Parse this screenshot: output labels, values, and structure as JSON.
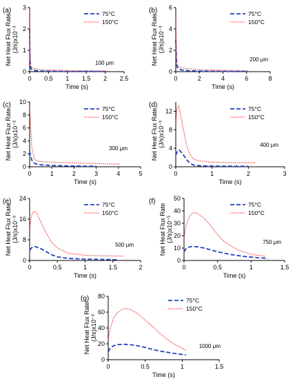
{
  "colors": {
    "s75": "#1f3fbf",
    "s150": "#e8261f",
    "axis": "#000000"
  },
  "chart_data": [
    {
      "type": "line",
      "panel": "(a)",
      "annotation": "100 μm",
      "xlabel": "Time (s)",
      "ylabel": [
        "Net Heat Flux Rate",
        "(J/s)x10⁻³"
      ],
      "xlim": [
        0,
        2.5
      ],
      "ylim": [
        0,
        3
      ],
      "xticks": [
        "0",
        "0.5",
        "1",
        "1.5",
        "2",
        "2.5"
      ],
      "yticks": [
        "0",
        "1",
        "2",
        "3"
      ],
      "series": [
        {
          "name": "75°C",
          "style": "dashed",
          "x": [
            0,
            0.01,
            0.02,
            0.04,
            0.1,
            0.3,
            0.6,
            1.0,
            1.5,
            2.0
          ],
          "y": [
            2.0,
            0.6,
            0.28,
            0.12,
            0.06,
            0.03,
            0.02,
            0.01,
            0.01,
            0.01
          ]
        },
        {
          "name": "150°C",
          "style": "dotted",
          "x": [
            0,
            0.01,
            0.02,
            0.04,
            0.1,
            0.3,
            0.6,
            1.0,
            1.5,
            2.05
          ],
          "y": [
            2.9,
            0.8,
            0.4,
            0.22,
            0.15,
            0.1,
            0.07,
            0.05,
            0.04,
            0.03
          ]
        }
      ]
    },
    {
      "type": "line",
      "panel": "(b)",
      "annotation": "200 μm",
      "xlabel": "Time (s)",
      "ylabel": [
        "Net Heat Flux Rate",
        "(J/s)x10⁻³"
      ],
      "xlim": [
        0,
        8
      ],
      "ylim": [
        0,
        6
      ],
      "xticks": [
        "0",
        "2",
        "4",
        "6",
        "8"
      ],
      "yticks": [
        "0",
        "2",
        "4",
        "6"
      ],
      "series": [
        {
          "name": "75°C",
          "style": "dashed",
          "x": [
            0,
            0.05,
            0.1,
            0.2,
            0.5,
            1,
            2,
            3,
            4,
            5,
            6
          ],
          "y": [
            3.0,
            1.0,
            0.5,
            0.3,
            0.15,
            0.1,
            0.06,
            0.04,
            0.03,
            0.02,
            0.02
          ]
        },
        {
          "name": "150°C",
          "style": "dotted",
          "x": [
            0,
            0.05,
            0.1,
            0.2,
            0.5,
            1,
            2,
            3,
            4,
            5,
            6.2
          ],
          "y": [
            5.0,
            2.0,
            0.9,
            0.5,
            0.35,
            0.28,
            0.2,
            0.15,
            0.12,
            0.1,
            0.08
          ]
        }
      ]
    },
    {
      "type": "line",
      "panel": "(c)",
      "annotation": "300 μm",
      "xlabel": "Time (s)",
      "ylabel": [
        "Net Heat Flux Rate",
        "(J/s)x10⁻³"
      ],
      "xlim": [
        0,
        5
      ],
      "ylim": [
        0,
        10
      ],
      "xticks": [
        "0",
        "1",
        "2",
        "3",
        "4",
        "5"
      ],
      "yticks": [
        "0",
        "2",
        "4",
        "6",
        "8",
        "10"
      ],
      "series": [
        {
          "name": "75°C",
          "style": "dashed",
          "x": [
            0,
            0.05,
            0.1,
            0.2,
            0.3,
            0.5,
            1,
            1.5,
            2,
            2.5,
            3
          ],
          "y": [
            2.4,
            1.6,
            1.0,
            0.6,
            0.4,
            0.3,
            0.2,
            0.15,
            0.12,
            0.1,
            0.1
          ]
        },
        {
          "name": "150°C",
          "style": "dotted",
          "x": [
            0,
            0.05,
            0.1,
            0.2,
            0.3,
            0.5,
            1,
            2,
            3,
            4.1
          ],
          "y": [
            9.2,
            6.0,
            3.0,
            1.3,
            0.95,
            0.8,
            0.7,
            0.6,
            0.5,
            0.4
          ]
        }
      ]
    },
    {
      "type": "line",
      "panel": "(d)",
      "annotation": "400 μm",
      "xlabel": "Time (s)",
      "ylabel": [
        "Net Heat Flux Rate",
        "(J/s)x10⁻³"
      ],
      "xlim": [
        0,
        3
      ],
      "ylim": [
        0,
        14
      ],
      "xticks": [
        "0",
        "1",
        "2",
        "3"
      ],
      "yticks": [
        "0",
        "4",
        "8",
        "12"
      ],
      "series": [
        {
          "name": "75°C",
          "style": "dashed",
          "x": [
            0,
            0.05,
            0.1,
            0.2,
            0.3,
            0.4,
            0.5,
            0.7,
            1,
            1.5,
            2.0
          ],
          "y": [
            2.5,
            3.4,
            3.6,
            2.7,
            1.5,
            0.7,
            0.35,
            0.2,
            0.15,
            0.12,
            0.1
          ]
        },
        {
          "name": "150°C",
          "style": "dotted",
          "x": [
            0,
            0.03,
            0.07,
            0.1,
            0.2,
            0.3,
            0.4,
            0.5,
            0.7,
            1,
            1.5,
            2.2
          ],
          "y": [
            9.0,
            12.5,
            13.2,
            12.5,
            8.5,
            4.5,
            2.5,
            1.6,
            1.2,
            1.0,
            0.9,
            0.85
          ]
        }
      ]
    },
    {
      "type": "line",
      "panel": "(e)",
      "annotation": "500 μm",
      "xlabel": "Time (s)",
      "ylabel": [
        "Net Heat Flux Rate",
        "(J/s)x10⁻³"
      ],
      "xlim": [
        0,
        2
      ],
      "ylim": [
        0,
        24
      ],
      "xticks": [
        "0",
        "0.5",
        "1",
        "1.5",
        "2"
      ],
      "yticks": [
        "0",
        "8",
        "16",
        "24"
      ],
      "series": [
        {
          "name": "75°C",
          "style": "dashed",
          "x": [
            0,
            0.05,
            0.1,
            0.2,
            0.3,
            0.4,
            0.5,
            0.7,
            1,
            1.3,
            1.6
          ],
          "y": [
            4.0,
            5.2,
            5.4,
            4.6,
            3.4,
            2.2,
            1.4,
            0.8,
            0.5,
            0.4,
            0.3
          ]
        },
        {
          "name": "150°C",
          "style": "dotted",
          "x": [
            0,
            0.03,
            0.07,
            0.12,
            0.2,
            0.3,
            0.4,
            0.5,
            0.7,
            1,
            1.3,
            1.7
          ],
          "y": [
            12.0,
            17.0,
            19.0,
            18.5,
            15.0,
            10.5,
            7.0,
            4.8,
            2.8,
            2.0,
            1.8,
            1.7
          ]
        }
      ]
    },
    {
      "type": "line",
      "panel": "(f)",
      "annotation": "750 μm",
      "xlabel": "Time (s)",
      "ylabel": [
        "Net Heat Flux Rate",
        "(J/s)x10⁻³"
      ],
      "xlim": [
        0,
        1.5
      ],
      "ylim": [
        0,
        50
      ],
      "xticks": [
        "0",
        "0.5",
        "1",
        "1.5"
      ],
      "yticks": [
        "0",
        "10",
        "20",
        "30",
        "40",
        "50"
      ],
      "series": [
        {
          "name": "75°C",
          "style": "dashed",
          "x": [
            0,
            0.03,
            0.07,
            0.12,
            0.2,
            0.3,
            0.4,
            0.5,
            0.7,
            0.9,
            1.1,
            1.25
          ],
          "y": [
            7.0,
            9.5,
            10.8,
            11.3,
            11.0,
            10.0,
            8.5,
            7.0,
            4.8,
            3.2,
            2.2,
            1.8
          ]
        },
        {
          "name": "150°C",
          "style": "dotted",
          "x": [
            0,
            0.03,
            0.07,
            0.1,
            0.15,
            0.2,
            0.3,
            0.4,
            0.5,
            0.6,
            0.8,
            1.0,
            1.2
          ],
          "y": [
            18.0,
            28.0,
            34.0,
            37.0,
            38.5,
            38.0,
            34.0,
            28.0,
            21.0,
            15.0,
            8.5,
            5.0,
            3.5
          ]
        }
      ]
    },
    {
      "type": "line",
      "panel": "(g)",
      "annotation": "1000 μm",
      "xlabel": "Time (s)",
      "ylabel": [
        "Net Heat Flux Rate",
        "(J/s)x10⁻³"
      ],
      "xlim": [
        0,
        1.5
      ],
      "ylim": [
        0,
        80
      ],
      "xticks": [
        "0",
        "0.5",
        "1",
        "1.5"
      ],
      "yticks": [
        "0",
        "20",
        "40",
        "60",
        "80"
      ],
      "series": [
        {
          "name": "75°C",
          "style": "dashed",
          "x": [
            0,
            0.03,
            0.07,
            0.12,
            0.2,
            0.3,
            0.4,
            0.5,
            0.6,
            0.7,
            0.85,
            1.05
          ],
          "y": [
            10.0,
            15.0,
            17.5,
            19.0,
            19.5,
            19.0,
            17.5,
            15.5,
            13.0,
            11.0,
            8.5,
            6.0
          ]
        },
        {
          "name": "150°C",
          "style": "dotted",
          "x": [
            0,
            0.03,
            0.07,
            0.12,
            0.2,
            0.25,
            0.3,
            0.4,
            0.5,
            0.6,
            0.7,
            0.85,
            1.05
          ],
          "y": [
            25.0,
            40.0,
            52.0,
            59.0,
            64.0,
            64.5,
            63.5,
            58.0,
            50.0,
            42.0,
            33.0,
            22.0,
            12.0
          ]
        }
      ]
    }
  ]
}
